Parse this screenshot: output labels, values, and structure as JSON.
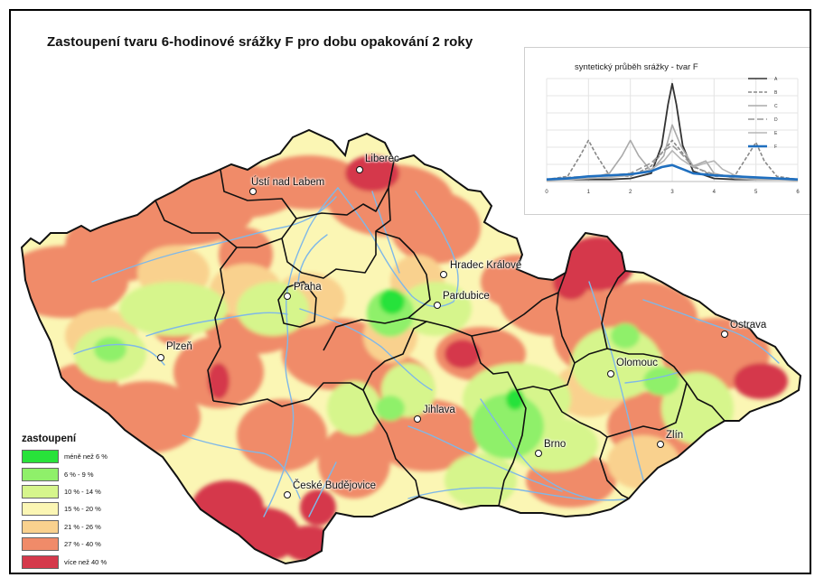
{
  "title": "Zastoupení tvaru 6-hodinové srážky F pro dobu opakování 2 roky",
  "colors": {
    "green_dark": "#28e23a",
    "green_light": "#8ff06a",
    "green_yellow": "#d6f58c",
    "yellow": "#fbf6b4",
    "orange_light": "#f9d18e",
    "salmon": "#f08b69",
    "red": "#d5394b",
    "river": "#7fb8e8",
    "border": "#111111"
  },
  "legend": {
    "title": "zastoupení",
    "items": [
      {
        "label": "méně než 6 %",
        "color": "#28e23a"
      },
      {
        "label": "6 % - 9 %",
        "color": "#8ff06a"
      },
      {
        "label": "10 % - 14 %",
        "color": "#d6f58c"
      },
      {
        "label": "15 % - 20 %",
        "color": "#fbf6b4"
      },
      {
        "label": "21 % - 26 %",
        "color": "#f9d18e"
      },
      {
        "label": "27 % - 40 %",
        "color": "#f08b69"
      },
      {
        "label": "více než 40 %",
        "color": "#d5394b"
      }
    ]
  },
  "cities": [
    {
      "name": "Liberec"
    },
    {
      "name": "Ústí nad Labem"
    },
    {
      "name": "Hradec Králové"
    },
    {
      "name": "Pardubice"
    },
    {
      "name": "Praha"
    },
    {
      "name": "Plzeň"
    },
    {
      "name": "Ostrava"
    },
    {
      "name": "Olomouc"
    },
    {
      "name": "Jihlava"
    },
    {
      "name": "Zlín"
    },
    {
      "name": "Brno"
    },
    {
      "name": "České Budějovice"
    }
  ],
  "chart_data": {
    "type": "line",
    "title": "syntetický průběh srážky - tvar F",
    "xlim": [
      0,
      6
    ],
    "x_ticks": [
      "0",
      "1",
      "2",
      "3",
      "4",
      "5",
      "6"
    ],
    "grid": true,
    "legend_position": "right",
    "series": [
      {
        "name": "A",
        "color": "#333333",
        "dash": "solid",
        "x": [
          0,
          0.5,
          1,
          1.5,
          2,
          2.5,
          2.75,
          2.9,
          3.0,
          3.1,
          3.25,
          3.5,
          4,
          4.5,
          5,
          5.5,
          6
        ],
        "y": [
          0.02,
          0.02,
          0.02,
          0.02,
          0.03,
          0.08,
          0.35,
          0.75,
          0.95,
          0.75,
          0.35,
          0.1,
          0.03,
          0.02,
          0.02,
          0.02,
          0.02
        ]
      },
      {
        "name": "B",
        "color": "#888888",
        "dash": "dash",
        "x": [
          0,
          0.5,
          0.8,
          1.0,
          1.2,
          1.5,
          2,
          2.5,
          3,
          3.5,
          4,
          4.5,
          4.8,
          5.0,
          5.2,
          5.5,
          6
        ],
        "y": [
          0.02,
          0.05,
          0.25,
          0.4,
          0.25,
          0.06,
          0.05,
          0.15,
          0.4,
          0.15,
          0.05,
          0.06,
          0.25,
          0.38,
          0.2,
          0.05,
          0.02
        ]
      },
      {
        "name": "C",
        "color": "#aaaaaa",
        "dash": "solid",
        "x": [
          0,
          0.5,
          1,
          1.5,
          1.8,
          2.0,
          2.2,
          2.5,
          2.8,
          3.0,
          3.2,
          3.5,
          3.8,
          4,
          4.5,
          5,
          5.5,
          6
        ],
        "y": [
          0.02,
          0.02,
          0.03,
          0.08,
          0.25,
          0.4,
          0.25,
          0.1,
          0.25,
          0.55,
          0.35,
          0.15,
          0.2,
          0.08,
          0.03,
          0.02,
          0.02,
          0.02
        ]
      },
      {
        "name": "D",
        "color": "#999999",
        "dash": "longdash",
        "x": [
          0,
          0.5,
          1,
          1.5,
          2,
          2.5,
          2.8,
          3.0,
          3.2,
          3.5,
          4,
          4.5,
          5,
          5.5,
          6
        ],
        "y": [
          0.02,
          0.04,
          0.05,
          0.06,
          0.08,
          0.18,
          0.3,
          0.35,
          0.28,
          0.14,
          0.07,
          0.05,
          0.04,
          0.03,
          0.02
        ]
      },
      {
        "name": "E",
        "color": "#b5b5b5",
        "dash": "solid",
        "x": [
          0,
          0.5,
          1,
          1.5,
          2,
          2.5,
          2.8,
          3.0,
          3.2,
          3.5,
          3.8,
          4.0,
          4.2,
          4.5,
          5,
          5.5,
          6
        ],
        "y": [
          0.01,
          0.02,
          0.03,
          0.04,
          0.06,
          0.12,
          0.2,
          0.3,
          0.22,
          0.14,
          0.18,
          0.2,
          0.12,
          0.06,
          0.03,
          0.02,
          0.01
        ]
      },
      {
        "name": "F",
        "color": "#1f6fbf",
        "dash": "solid",
        "x": [
          0,
          0.5,
          1,
          1.5,
          2,
          2.5,
          2.75,
          3.0,
          3.25,
          3.5,
          4,
          4.5,
          5,
          5.5,
          6
        ],
        "y": [
          0.02,
          0.03,
          0.05,
          0.06,
          0.07,
          0.1,
          0.14,
          0.16,
          0.12,
          0.08,
          0.06,
          0.05,
          0.04,
          0.03,
          0.02
        ]
      }
    ]
  }
}
